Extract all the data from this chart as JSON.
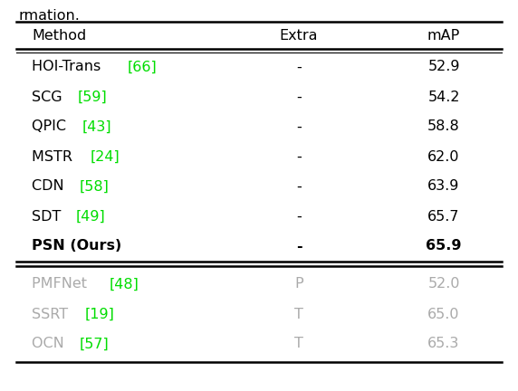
{
  "title_text": "rmation.",
  "header": [
    "Method",
    "Extra",
    "mAP"
  ],
  "rows_main": [
    {
      "method": "HOI-Trans ",
      "cite": "[66]",
      "extra": "-",
      "map": "52.9",
      "bold": false
    },
    {
      "method": "SCG ",
      "cite": "[59]",
      "extra": "-",
      "map": "54.2",
      "bold": false
    },
    {
      "method": "QPIC ",
      "cite": "[43]",
      "extra": "-",
      "map": "58.8",
      "bold": false
    },
    {
      "method": "MSTR ",
      "cite": "[24]",
      "extra": "-",
      "map": "62.0",
      "bold": false
    },
    {
      "method": "CDN ",
      "cite": "[58]",
      "extra": "-",
      "map": "63.9",
      "bold": false
    },
    {
      "method": "SDT ",
      "cite": "[49]",
      "extra": "-",
      "map": "65.7",
      "bold": false
    },
    {
      "method": "PSN (Ours)",
      "cite": "",
      "extra": "-",
      "map": "65.9",
      "bold": true
    }
  ],
  "rows_gray": [
    {
      "method": "PMFNet ",
      "cite": "[48]",
      "extra": "P",
      "map": "52.0"
    },
    {
      "method": "SSRT ",
      "cite": "[19]",
      "extra": "T",
      "map": "65.0"
    },
    {
      "method": "OCN ",
      "cite": "[57]",
      "extra": "T",
      "map": "65.3"
    }
  ],
  "green_color": "#00dd00",
  "gray_color": "#aaaaaa",
  "black_color": "#000000",
  "bg_color": "#ffffff",
  "font_size": 11.5,
  "header_font_size": 12
}
